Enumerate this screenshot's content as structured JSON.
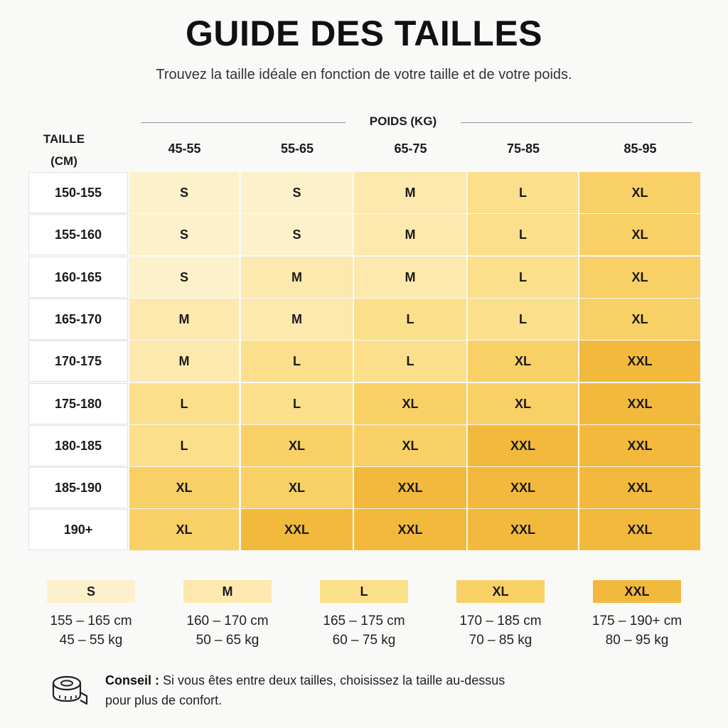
{
  "title": "GUIDE DES TAILLES",
  "subtitle": "Trouvez la taille idéale en fonction de votre taille et de votre poids.",
  "weight_axis_label": "POIDS (KG)",
  "height_axis_label_line1": "TAILLE",
  "height_axis_label_line2": "(CM)",
  "weight_columns": [
    "45-55",
    "55-65",
    "65-75",
    "75-85",
    "85-95"
  ],
  "height_rows": [
    "150-155",
    "155-160",
    "160-165",
    "165-170",
    "170-175",
    "175-180",
    "180-185",
    "185-190",
    "190+"
  ],
  "grid": [
    [
      "S",
      "S",
      "M",
      "L",
      "XL"
    ],
    [
      "S",
      "S",
      "M",
      "L",
      "XL"
    ],
    [
      "S",
      "M",
      "M",
      "L",
      "XL"
    ],
    [
      "M",
      "M",
      "L",
      "L",
      "XL"
    ],
    [
      "M",
      "L",
      "L",
      "XL",
      "XXL"
    ],
    [
      "L",
      "L",
      "XL",
      "XL",
      "XXL"
    ],
    [
      "L",
      "XL",
      "XL",
      "XXL",
      "XXL"
    ],
    [
      "XL",
      "XL",
      "XXL",
      "XXL",
      "XXL"
    ],
    [
      "XL",
      "XXL",
      "XXL",
      "XXL",
      "XXL"
    ]
  ],
  "size_colors": {
    "S": "#fdf1cc",
    "M": "#fde8ae",
    "L": "#fcdf8a",
    "XL": "#f9d066",
    "XXL": "#f3b93c"
  },
  "legend": [
    {
      "size": "S",
      "height": "155 – 165 cm",
      "weight": "45 – 55 kg"
    },
    {
      "size": "M",
      "height": "160 – 170 cm",
      "weight": "50 – 65 kg"
    },
    {
      "size": "L",
      "height": "165 – 175 cm",
      "weight": "60 – 75 kg"
    },
    {
      "size": "XL",
      "height": "170 – 185 cm",
      "weight": "70 – 85 kg"
    },
    {
      "size": "XXL",
      "height": "175 – 190+ cm",
      "weight": "80 – 95 kg"
    }
  ],
  "tip": {
    "label": "Conseil :",
    "text_line1": " Si vous êtes entre deux tailles, choisissez la taille au-dessus",
    "text_line2": "pour plus de confort."
  },
  "tip_icon": "measuring-tape-icon"
}
